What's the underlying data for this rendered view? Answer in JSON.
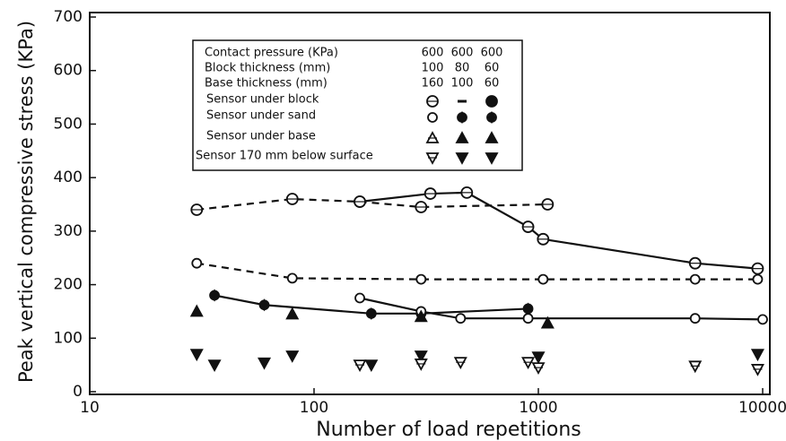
{
  "chart_data": {
    "type": "line",
    "xlabel": "Number of load repetitions",
    "ylabel": "Peak vertical compressive stress (KPa)",
    "xscale": "log",
    "xlim": [
      10,
      10000
    ],
    "xticks": [
      10,
      100,
      1000,
      10000
    ],
    "ylim": [
      0,
      700
    ],
    "yticks": [
      0,
      100,
      200,
      300,
      400,
      500,
      600,
      700
    ],
    "color": "#111111",
    "legend": {
      "header_rows": [
        {
          "label": "Contact pressure (KPa)",
          "values": [
            600,
            600,
            600
          ]
        },
        {
          "label": "Block thickness (mm)",
          "values": [
            100,
            80,
            60
          ]
        },
        {
          "label": "Base thickness (mm)",
          "values": [
            160,
            100,
            60
          ]
        }
      ],
      "sensor_rows": [
        {
          "label": "Sensor under block",
          "markers": [
            "circle-open",
            "dash",
            "circle-half"
          ]
        },
        {
          "label": "Sensor under sand",
          "markers": [
            "diamond-open",
            "diamond-filled",
            "diamond-half"
          ]
        },
        {
          "label": "Sensor under base",
          "markers": [
            "triangle-open",
            "triangle-filled",
            "triangle-filled"
          ]
        },
        {
          "label": "Sensor 170 mm below surface",
          "markers": [
            "tri-down-open",
            "tri-down-filled",
            "tri-down-filled"
          ]
        }
      ]
    },
    "series": [
      {
        "marker": "circle-open",
        "line": "dashed",
        "x": [
          30,
          80,
          160,
          300,
          1100
        ],
        "values": [
          340,
          360,
          355,
          345,
          350
        ]
      },
      {
        "marker": "circle-open",
        "line": "solid",
        "x": [
          160,
          330,
          480,
          900,
          1050,
          5000,
          9500
        ],
        "values": [
          355,
          370,
          372,
          308,
          285,
          240,
          230
        ]
      },
      {
        "marker": "diamond-open",
        "line": "dashed",
        "x": [
          30,
          80,
          300,
          1050,
          5000,
          9500
        ],
        "values": [
          240,
          212,
          210,
          210,
          210,
          210
        ]
      },
      {
        "marker": "diamond-filled",
        "line": "solid",
        "x": [
          36,
          60,
          180,
          300,
          900
        ],
        "values": [
          180,
          162,
          146,
          146,
          155
        ]
      },
      {
        "marker": "diamond-open",
        "line": "solid",
        "x": [
          160,
          300,
          450,
          900,
          5000,
          10000
        ],
        "values": [
          175,
          150,
          137,
          137,
          137,
          135
        ]
      },
      {
        "marker": "triangle-filled",
        "line": "none",
        "x": [
          30,
          80,
          300,
          1100
        ],
        "values": [
          150,
          145,
          140,
          128
        ]
      },
      {
        "marker": "tri-down-filled",
        "line": "none",
        "x": [
          30,
          36,
          60,
          80,
          180,
          300,
          1000,
          9500
        ],
        "values": [
          70,
          50,
          54,
          67,
          50,
          67,
          65,
          70
        ]
      },
      {
        "marker": "tri-down-open",
        "line": "none",
        "x": [
          160,
          300,
          450,
          900,
          1000,
          5000,
          9500
        ],
        "values": [
          50,
          52,
          55,
          55,
          45,
          48,
          42
        ]
      }
    ]
  }
}
